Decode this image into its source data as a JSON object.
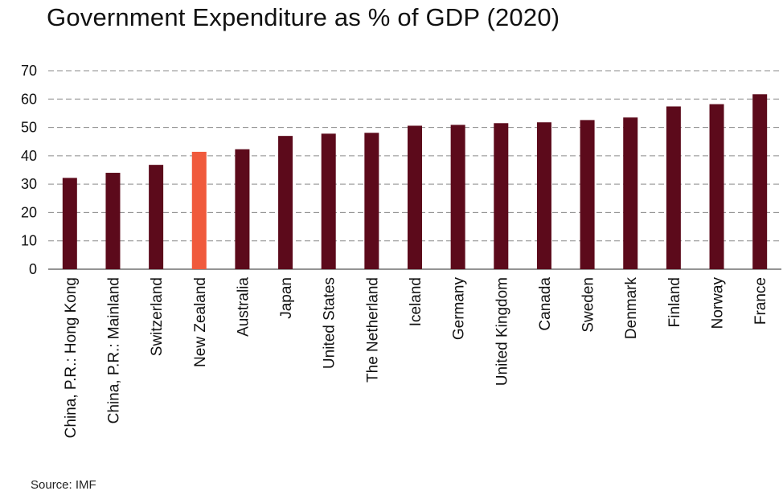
{
  "chart_data": {
    "type": "bar",
    "title": "Government Expenditure as % of GDP (2020)",
    "xlabel": "",
    "ylabel": "",
    "ylim": [
      0,
      70
    ],
    "yticks": [
      0,
      10,
      20,
      30,
      40,
      50,
      60,
      70
    ],
    "grid": true,
    "legend": "none",
    "categories": [
      "China, P.R.: Hong Kong",
      "China, P.R.: Mainland",
      "Switzerland",
      "New Zealand",
      "Australia",
      "Japan",
      "United States",
      "The Netherland",
      "Iceland",
      "Germany",
      "United Kingdom",
      "Canada",
      "Sweden",
      "Denmark",
      "Finland",
      "Norway",
      "France"
    ],
    "values": [
      32.2,
      34.0,
      36.8,
      41.4,
      42.3,
      47.0,
      47.8,
      48.1,
      50.6,
      50.9,
      51.5,
      51.8,
      52.6,
      53.5,
      57.4,
      58.2,
      61.7
    ],
    "colors": {
      "default": "#5c0a1b",
      "highlight": "#f05a3c"
    },
    "highlight_category": "New Zealand",
    "source": "Source: IMF"
  }
}
